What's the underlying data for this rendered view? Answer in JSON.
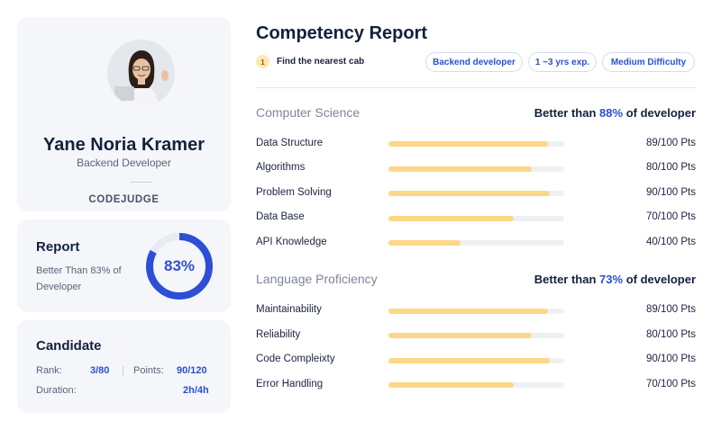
{
  "profile": {
    "name": "Yane Noria Kramer",
    "role": "Backend Developer",
    "brand": "CODEJUDGE"
  },
  "report": {
    "title": "Report",
    "text": "Better Than 83% of Developer",
    "percent_label": "83%",
    "percent": 83,
    "accent": "#2d4fd6",
    "track": "#e8ebf4"
  },
  "candidate": {
    "title": "Candidate",
    "rank_label": "Rank:",
    "rank_value": "3/80",
    "points_label": "Points:",
    "points_value": "90/120",
    "duration_label": "Duration:",
    "duration_value": "2h/4h"
  },
  "header": {
    "title": "Competency Report",
    "task_number": "1",
    "task_text": "Find the nearest cab",
    "tags": [
      "Backend developer",
      "1 ~3 yrs exp.",
      "Medium Difficulty"
    ]
  },
  "sections": [
    {
      "title": "Computer Science",
      "summary_prefix": "Better than",
      "summary_pct": "88%",
      "summary_suffix": "of developer",
      "rows": [
        {
          "label": "Data Structure",
          "value": "89/100 Pts",
          "score": 89
        },
        {
          "label": "Algorithms",
          "value": "80/100 Pts",
          "score": 80
        },
        {
          "label": "Problem Solving",
          "value": "90/100 Pts",
          "score": 90
        },
        {
          "label": "Data Base",
          "value": "70/100 Pts",
          "score": 70
        },
        {
          "label": "API Knowledge",
          "value": "40/100 Pts",
          "score": 40
        }
      ]
    },
    {
      "title": "Language Proficiency",
      "summary_prefix": "Better than",
      "summary_pct": "73%",
      "summary_suffix": "of developer",
      "rows": [
        {
          "label": "Maintainability",
          "value": "89/100 Pts",
          "score": 89
        },
        {
          "label": "Reliability",
          "value": "80/100 Pts",
          "score": 80
        },
        {
          "label": "Code Compleixty",
          "value": "90/100 Pts",
          "score": 90
        },
        {
          "label": "Error Handling",
          "value": "70/100 Pts",
          "score": 70
        }
      ]
    }
  ],
  "colors": {
    "bar_fill": "#fcd788",
    "bar_track": "#eef0f4",
    "card_bg": "#f4f6fa"
  },
  "icons": {
    "avatar": "user-photo-avatar"
  }
}
